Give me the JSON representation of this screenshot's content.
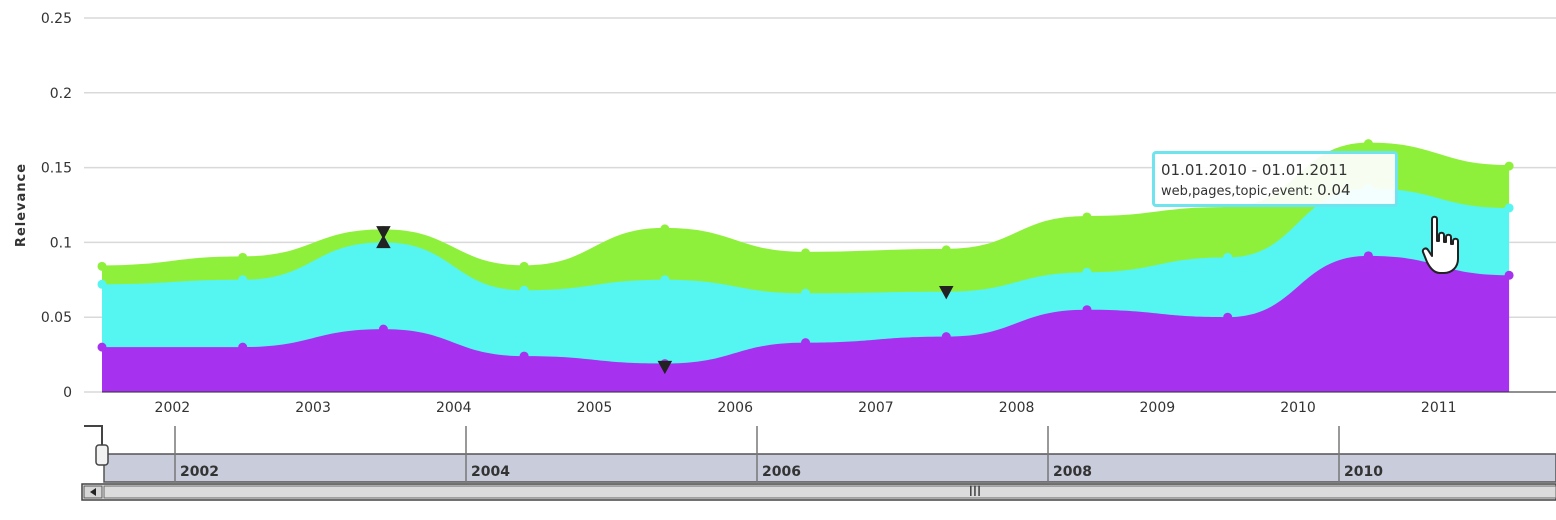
{
  "chart_data": {
    "type": "area",
    "stacked": true,
    "ylabel": "Relevance",
    "ylim": [
      0,
      0.25
    ],
    "yticks": [
      "0",
      "0.05",
      "0.1",
      "0.15",
      "0.2",
      "0.25"
    ],
    "xlim": [
      "2001-07",
      "2011-11"
    ],
    "xticks": [
      "2002",
      "2003",
      "2004",
      "2005",
      "2006",
      "2007",
      "2008",
      "2009",
      "2010",
      "2011"
    ],
    "grid": true,
    "x": [
      "2001-07",
      "2002-07",
      "2003-07",
      "2004-07",
      "2005-07",
      "2006-07",
      "2007-07",
      "2008-07",
      "2009-07",
      "2010-07",
      "2011-07"
    ],
    "series": [
      {
        "color": "#a632f0",
        "values": [
          0.03,
          0.03,
          0.042,
          0.024,
          0.019,
          0.033,
          0.037,
          0.055,
          0.05,
          0.091,
          0.078
        ]
      },
      {
        "color": "#55f5f2",
        "values": [
          0.042,
          0.045,
          0.058,
          0.044,
          0.056,
          0.033,
          0.03,
          0.025,
          0.04,
          0.045,
          0.045
        ]
      },
      {
        "color": "#8ff03c",
        "values": [
          0.012,
          0.015,
          0.008,
          0.016,
          0.034,
          0.027,
          0.028,
          0.037,
          0.033,
          0.03,
          0.028
        ]
      }
    ],
    "markers": [
      {
        "x": "2003-07",
        "y": 0.107,
        "shape": "down-triangle"
      },
      {
        "x": "2003-07",
        "y": 0.1,
        "shape": "up-triangle"
      },
      {
        "x": "2005-07",
        "y": 0.017,
        "shape": "down-triangle"
      },
      {
        "x": "2007-07",
        "y": 0.067,
        "shape": "down-triangle"
      }
    ],
    "tooltip": {
      "range": "01.01.2010 - 01.01.2011",
      "label": "web,pages,topic,event:",
      "value": "0.04"
    },
    "navigator": {
      "labels": [
        "2002",
        "2004",
        "2006",
        "2008",
        "2010"
      ],
      "scrollbar_grip": "III"
    }
  }
}
